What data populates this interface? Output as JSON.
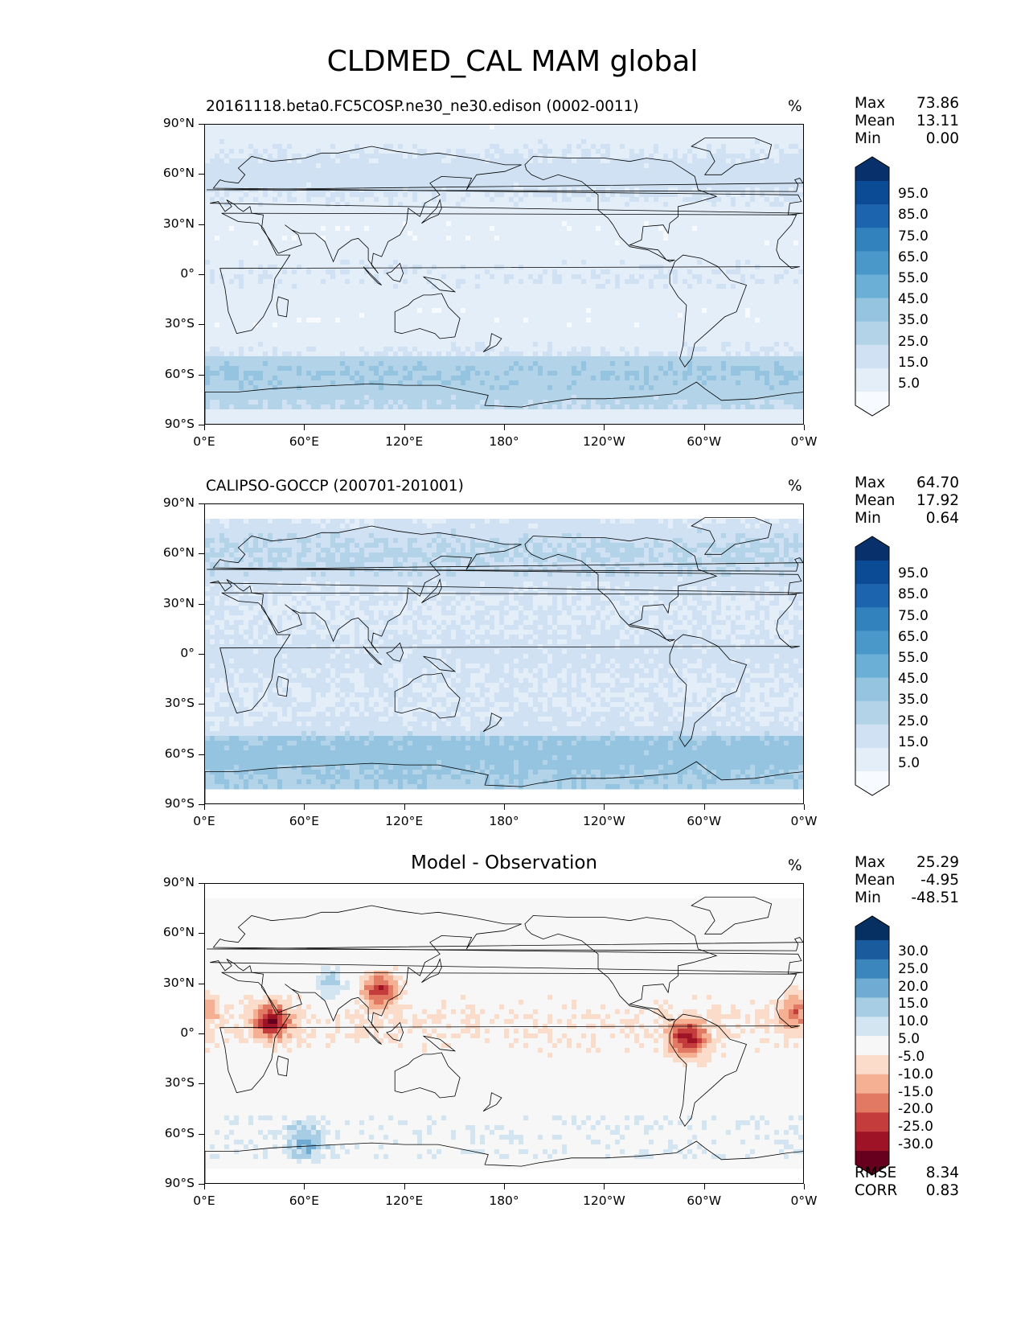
{
  "figure": {
    "title": "CLDMED_CAL MAM global"
  },
  "axes": {
    "lat_labels": [
      "90°N",
      "60°N",
      "30°N",
      "0°",
      "30°S",
      "60°S",
      "90°S"
    ],
    "lon_labels": [
      "0°E",
      "60°E",
      "120°E",
      "180°",
      "120°W",
      "60°W",
      "0°W"
    ]
  },
  "panels": [
    {
      "title": "20161118.beta0.FC5COSP.ne30_ne30.edison (0002-0011)",
      "units": "%",
      "stats": [
        {
          "label": "Max",
          "value": "73.86"
        },
        {
          "label": "Mean",
          "value": "13.11"
        },
        {
          "label": "Min",
          "value": "0.00"
        }
      ],
      "colorbar": {
        "labels": [
          "95.0",
          "85.0",
          "75.0",
          "65.0",
          "55.0",
          "45.0",
          "35.0",
          "25.0",
          "15.0",
          "5.0"
        ],
        "colors": [
          "#08306b",
          "#0b4a94",
          "#1c64ad",
          "#3182bd",
          "#4a98c9",
          "#6baed6",
          "#94c4df",
          "#b3d3e8",
          "#cfe1f2",
          "#e3eef9",
          "#f7fbff"
        ]
      },
      "map_style": "model"
    },
    {
      "title": "CALIPSO-GOCCP (200701-201001)",
      "units": "%",
      "stats": [
        {
          "label": "Max",
          "value": "64.70"
        },
        {
          "label": "Mean",
          "value": "17.92"
        },
        {
          "label": "Min",
          "value": "0.64"
        }
      ],
      "colorbar": {
        "labels": [
          "95.0",
          "85.0",
          "75.0",
          "65.0",
          "55.0",
          "45.0",
          "35.0",
          "25.0",
          "15.0",
          "5.0"
        ],
        "colors": [
          "#08306b",
          "#0b4a94",
          "#1c64ad",
          "#3182bd",
          "#4a98c9",
          "#6baed6",
          "#94c4df",
          "#b3d3e8",
          "#cfe1f2",
          "#e3eef9",
          "#f7fbff"
        ]
      },
      "map_style": "obs"
    },
    {
      "title": "Model - Observation",
      "units": "%",
      "stats": [
        {
          "label": "Max",
          "value": "25.29"
        },
        {
          "label": "Mean",
          "value": "-4.95"
        },
        {
          "label": "Min",
          "value": "-48.51"
        }
      ],
      "colorbar": {
        "labels": [
          "30.0",
          "25.0",
          "20.0",
          "15.0",
          "10.0",
          "5.0",
          "-5.0",
          "-10.0",
          "-15.0",
          "-20.0",
          "-25.0",
          "-30.0"
        ],
        "colors": [
          "#053061",
          "#1a5b9e",
          "#3a86bd",
          "#6fabd2",
          "#a6cde3",
          "#d2e5f0",
          "#f7f7f7",
          "#fbdccb",
          "#f5b094",
          "#e27a63",
          "#c43c3c",
          "#9e1326",
          "#67001f"
        ]
      },
      "map_style": "diff",
      "metrics": [
        {
          "label": "RMSE",
          "value": "8.34"
        },
        {
          "label": "CORR",
          "value": "0.83"
        }
      ]
    }
  ]
}
